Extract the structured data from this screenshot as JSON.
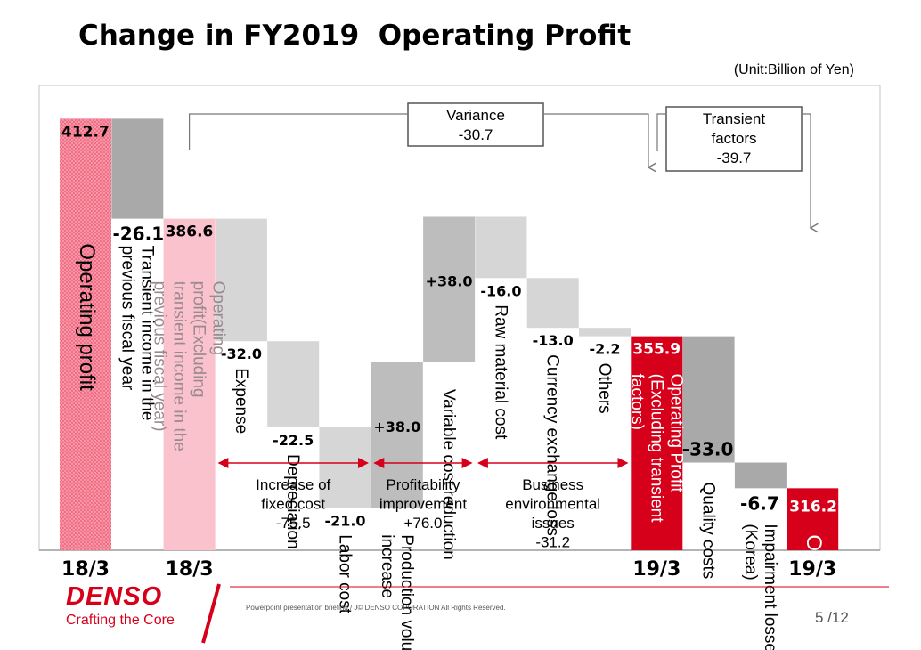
{
  "title": "Change in FY2019  Operating Profit",
  "unit": "(Unit:Billion of Yen)",
  "colors": {
    "red": "#d7001a",
    "pink_hatch": "#f26f86",
    "light_pink": "#f9c2cd",
    "gray_dark": "#a9a9a9",
    "gray_mid": "#bdbdbd",
    "gray_light": "#d6d6d6"
  },
  "chart_data": {
    "type": "waterfall",
    "title": "Change in FY2019  Operating Profit",
    "unit": "Billion of Yen",
    "ylim": [
      300,
      420
    ],
    "bars": [
      {
        "kind": "total",
        "value": 412.7,
        "value_label": "412.7",
        "label": "Operating profit",
        "style": "hatch"
      },
      {
        "kind": "delta",
        "value": -26.1,
        "value_label": "-26.1",
        "label": "Transient income in the previous fiscal year",
        "style": "dark"
      },
      {
        "kind": "total",
        "value": 386.6,
        "value_label": "386.6",
        "label": "Operating profit(Excluding transient income in the previous fiscal year)",
        "style": "pink"
      },
      {
        "kind": "delta",
        "value": -32.0,
        "value_label": "-32.0",
        "label": "Expense",
        "style": "light"
      },
      {
        "kind": "delta",
        "value": -22.5,
        "value_label": "-22.5",
        "label": "Depreciation",
        "style": "light"
      },
      {
        "kind": "delta",
        "value": -21.0,
        "value_label": "-21.0",
        "label": "Labor cost",
        "style": "light"
      },
      {
        "kind": "delta",
        "value": 38.0,
        "value_label": "+38.0",
        "label": "Production volume increase",
        "style": "mid"
      },
      {
        "kind": "delta",
        "value": 38.0,
        "value_label": "+38.0",
        "label": "Variable cost reduction",
        "style": "mid"
      },
      {
        "kind": "delta",
        "value": -16.0,
        "value_label": "-16.0",
        "label": "Raw material cost",
        "style": "light"
      },
      {
        "kind": "delta",
        "value": -13.0,
        "value_label": "-13.0",
        "label": "Currency exchange loss",
        "style": "light"
      },
      {
        "kind": "delta",
        "value": -2.2,
        "value_label": "-2.2",
        "label": "Others",
        "style": "light"
      },
      {
        "kind": "total",
        "value": 355.9,
        "value_label": "355.9",
        "label": "Operating Profit (Excluding transient factors)",
        "style": "red"
      },
      {
        "kind": "delta",
        "value": -33.0,
        "value_label": "-33.0",
        "label": "Quality costs",
        "style": "dark"
      },
      {
        "kind": "delta",
        "value": -6.7,
        "value_label": "-6.7",
        "label": "Impairment losses (Korea)",
        "style": "dark"
      },
      {
        "kind": "total",
        "value": 316.2,
        "value_label": "316.2",
        "label": "Operating profit",
        "style": "red"
      }
    ],
    "periods": [
      {
        "label": "18/3",
        "bar": 0
      },
      {
        "label": "18/3",
        "bar": 2
      },
      {
        "label": "19/3",
        "bar": 11
      },
      {
        "label": "19/3",
        "bar": 14
      }
    ],
    "groups": [
      {
        "lines": [
          "Increase of",
          "fixed cost",
          "-75.5"
        ],
        "from_bar": 3,
        "to_bar": 5
      },
      {
        "lines": [
          "Profitability",
          "improvement",
          "+76.0"
        ],
        "from_bar": 6,
        "to_bar": 7
      },
      {
        "lines": [
          "Business",
          "environmental",
          "issues",
          "-31.2"
        ],
        "from_bar": 8,
        "to_bar": 10
      }
    ],
    "callouts": [
      {
        "lines": [
          "Variance",
          "-30.7"
        ],
        "from_bar": 2,
        "to_bar": 11
      },
      {
        "lines": [
          "Transient",
          "factors",
          "-39.7"
        ],
        "from_bar": 11,
        "to_bar": 14
      }
    ]
  },
  "footer": {
    "note": "Powerpoint presentation briefing  / J© DENSO COPORATION All Rights Reserved.",
    "page": "5 /12",
    "logo": "DENSO",
    "tagline": "Crafting the Core"
  }
}
